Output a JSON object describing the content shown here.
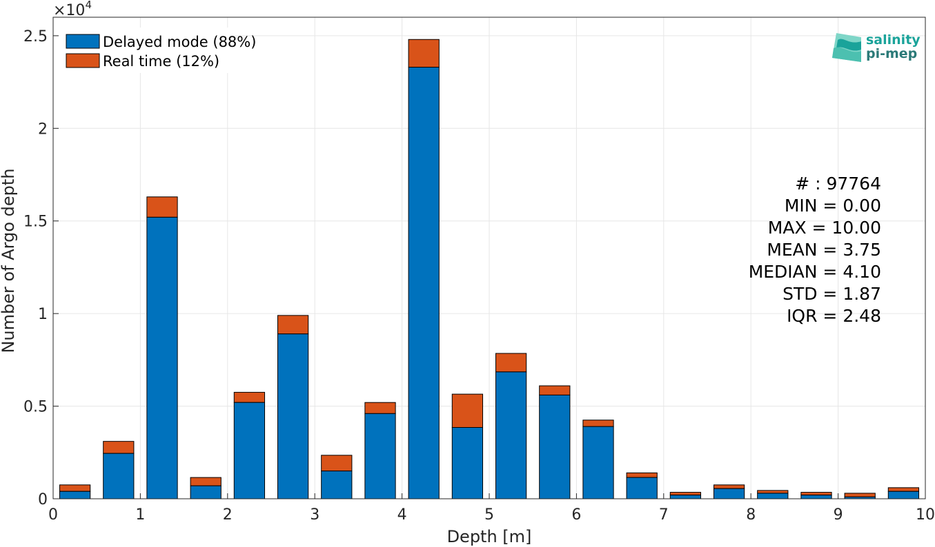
{
  "chart_data": {
    "type": "bar",
    "stacked": true,
    "xlabel": "Depth [m]",
    "ylabel": "Number of Argo depth",
    "xlim": [
      0,
      10
    ],
    "ylim": [
      0,
      25000
    ],
    "y_exponent_label": "×10",
    "y_exponent_power": "4",
    "xticks": [
      "0",
      "1",
      "2",
      "3",
      "4",
      "5",
      "6",
      "7",
      "8",
      "9",
      "10"
    ],
    "yticks": [
      "0",
      "0.5",
      "1",
      "1.5",
      "2",
      "2.5"
    ],
    "grid": true,
    "legend_position": "top-left",
    "bin_centers": [
      0.25,
      0.75,
      1.25,
      1.75,
      2.25,
      2.75,
      3.25,
      3.75,
      4.25,
      4.75,
      5.25,
      5.75,
      6.25,
      6.75,
      7.25,
      7.75,
      8.25,
      8.75,
      9.25,
      9.75
    ],
    "series": [
      {
        "name": "Delayed mode (88%)",
        "color": "#0072BD",
        "values": [
          400,
          2450,
          15200,
          700,
          5200,
          8900,
          1500,
          4600,
          23300,
          3850,
          6850,
          5600,
          3900,
          1150,
          200,
          550,
          300,
          200,
          100,
          400
        ]
      },
      {
        "name": "Real time (12%)",
        "color": "#D95319",
        "values": [
          350,
          650,
          1100,
          450,
          550,
          1000,
          850,
          600,
          1500,
          1800,
          1000,
          500,
          350,
          250,
          150,
          200,
          150,
          150,
          200,
          200
        ]
      }
    ],
    "stats": [
      "# : 97764",
      "MIN = 0.00",
      "MAX =  10.00",
      "MEAN = 3.75",
      "MEDIAN = 4.10",
      "STD = 1.87",
      "IQR = 2.48"
    ]
  },
  "logo": {
    "line1": "salinity",
    "line2": "pi-mep",
    "color1": "#1aa39a",
    "color2": "#2b7a78"
  }
}
